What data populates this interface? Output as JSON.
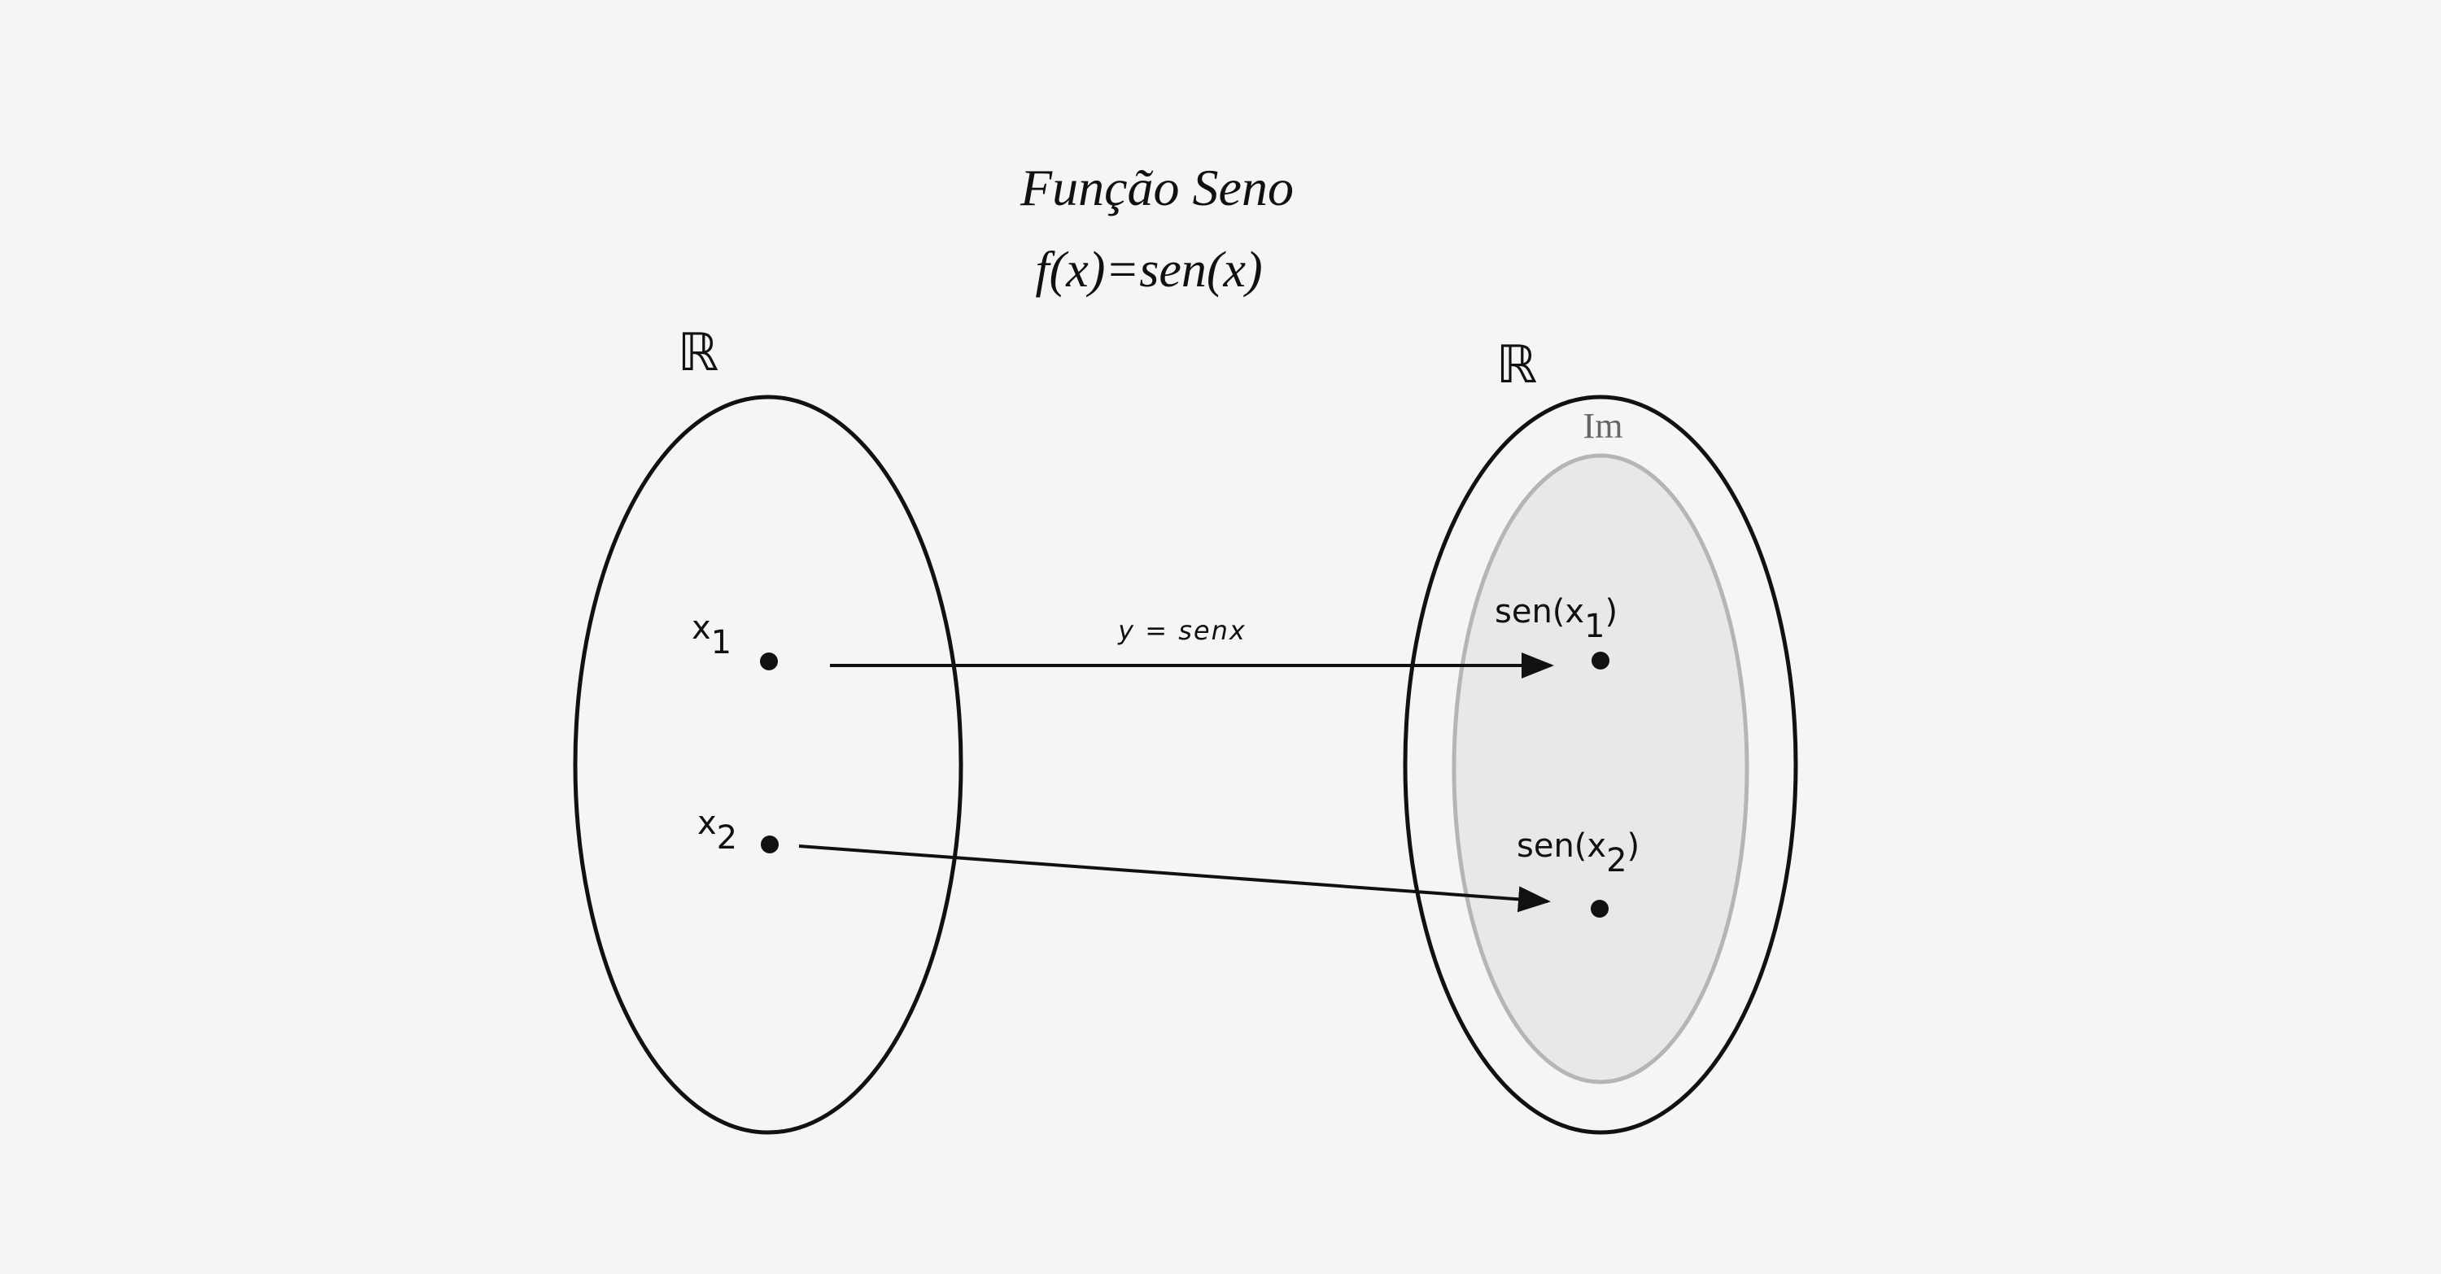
{
  "diagram": {
    "title": "Função Seno",
    "formula": "f(x)=sen(x)",
    "domain_set_label": "ℝ",
    "codomain_set_label": "ℝ",
    "image_label": "Im",
    "arrow_label": "y = senx",
    "domain_points": [
      {
        "base": "x",
        "sub": "1"
      },
      {
        "base": "x",
        "sub": "2"
      }
    ],
    "image_points": [
      {
        "prefix": "sen(x",
        "sub": "1",
        "suffix": ")"
      },
      {
        "prefix": "sen(x",
        "sub": "2",
        "suffix": ")"
      }
    ],
    "colors": {
      "background": "#f5f6f3",
      "outline": "#111111",
      "image_fill": "#e8e9e6",
      "image_stroke": "#b5b5b5",
      "image_label": "#666666"
    }
  }
}
